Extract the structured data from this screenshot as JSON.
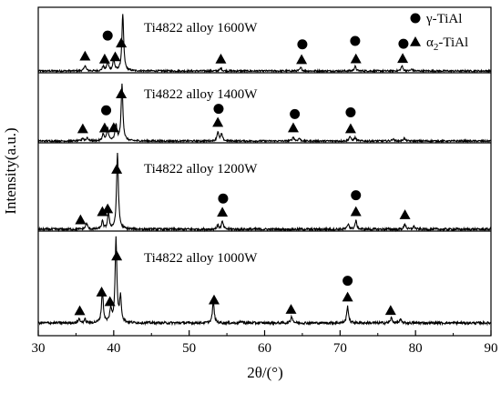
{
  "chart_data": {
    "type": "line",
    "title": "",
    "xlabel": "2θ/(°)",
    "ylabel": "Intensity(a.u.)",
    "xlim": [
      30,
      90
    ],
    "x_ticks": [
      "30",
      "40",
      "50",
      "60",
      "70",
      "80",
      "90"
    ],
    "grid": false,
    "legend_position": "top-right",
    "legend": [
      {
        "marker": "circle",
        "phase_prefix": "γ",
        "phase_suffix": "-TiAl"
      },
      {
        "marker": "triangle",
        "phase_prefix": "α",
        "phase_subscript": "2",
        "phase_suffix": "-TiAl"
      }
    ],
    "panels": [
      {
        "label": "Ti4822 alloy 1600W",
        "peaks": [
          [
            36.2,
            0.1
          ],
          [
            38.6,
            0.08
          ],
          [
            39.2,
            0.16
          ],
          [
            40.0,
            0.2
          ],
          [
            41.2,
            1.0
          ],
          [
            54.2,
            0.05
          ],
          [
            64.8,
            0.06
          ],
          [
            72.0,
            0.08
          ],
          [
            78.2,
            0.09
          ],
          [
            79.5,
            0.03
          ]
        ],
        "circles": [
          39.2,
          65.0,
          72.0,
          78.4
        ],
        "triangles": [
          36.2,
          38.8,
          40.2,
          41.0,
          54.2,
          64.9,
          72.1,
          78.3
        ]
      },
      {
        "label": "Ti4822 alloy 1400W",
        "peaks": [
          [
            35.9,
            0.05
          ],
          [
            36.5,
            0.06
          ],
          [
            38.6,
            0.12
          ],
          [
            39.2,
            0.22
          ],
          [
            40.3,
            0.28
          ],
          [
            41.1,
            1.0
          ],
          [
            53.8,
            0.16
          ],
          [
            54.3,
            0.12
          ],
          [
            63.8,
            0.07
          ],
          [
            64.6,
            0.05
          ],
          [
            71.3,
            0.08
          ],
          [
            72.0,
            0.06
          ],
          [
            77.0,
            0.04
          ],
          [
            78.5,
            0.05
          ]
        ],
        "circles": [
          39.0,
          53.9,
          64.0,
          71.4
        ],
        "triangles": [
          35.9,
          38.8,
          40.0,
          41.0,
          53.8,
          63.8,
          71.4
        ]
      },
      {
        "label": "Ti4822 alloy 1200W",
        "peaks": [
          [
            36.4,
            0.08
          ],
          [
            38.5,
            0.1
          ],
          [
            39.3,
            0.2
          ],
          [
            40.5,
            1.0
          ],
          [
            53.8,
            0.05
          ],
          [
            54.4,
            0.1
          ],
          [
            71.1,
            0.07
          ],
          [
            72.1,
            0.11
          ],
          [
            78.6,
            0.07
          ],
          [
            79.8,
            0.04
          ]
        ],
        "circles": [
          54.5,
          72.1
        ],
        "triangles": [
          35.6,
          38.5,
          39.2,
          40.4,
          54.4,
          72.1,
          78.6
        ]
      },
      {
        "label": "Ti4822 alloy 1000W",
        "peaks": [
          [
            35.4,
            0.05
          ],
          [
            36.2,
            0.04
          ],
          [
            38.5,
            0.38
          ],
          [
            39.6,
            0.16
          ],
          [
            40.3,
            1.0
          ],
          [
            40.9,
            0.3
          ],
          [
            53.2,
            0.25
          ],
          [
            57.0,
            0.02
          ],
          [
            63.6,
            0.08
          ],
          [
            71.0,
            0.2
          ],
          [
            76.8,
            0.06
          ],
          [
            78.0,
            0.04
          ]
        ],
        "circles": [
          71.0
        ],
        "triangles": [
          35.5,
          38.4,
          39.5,
          40.4,
          53.3,
          63.5,
          71.0,
          76.7
        ]
      }
    ]
  }
}
